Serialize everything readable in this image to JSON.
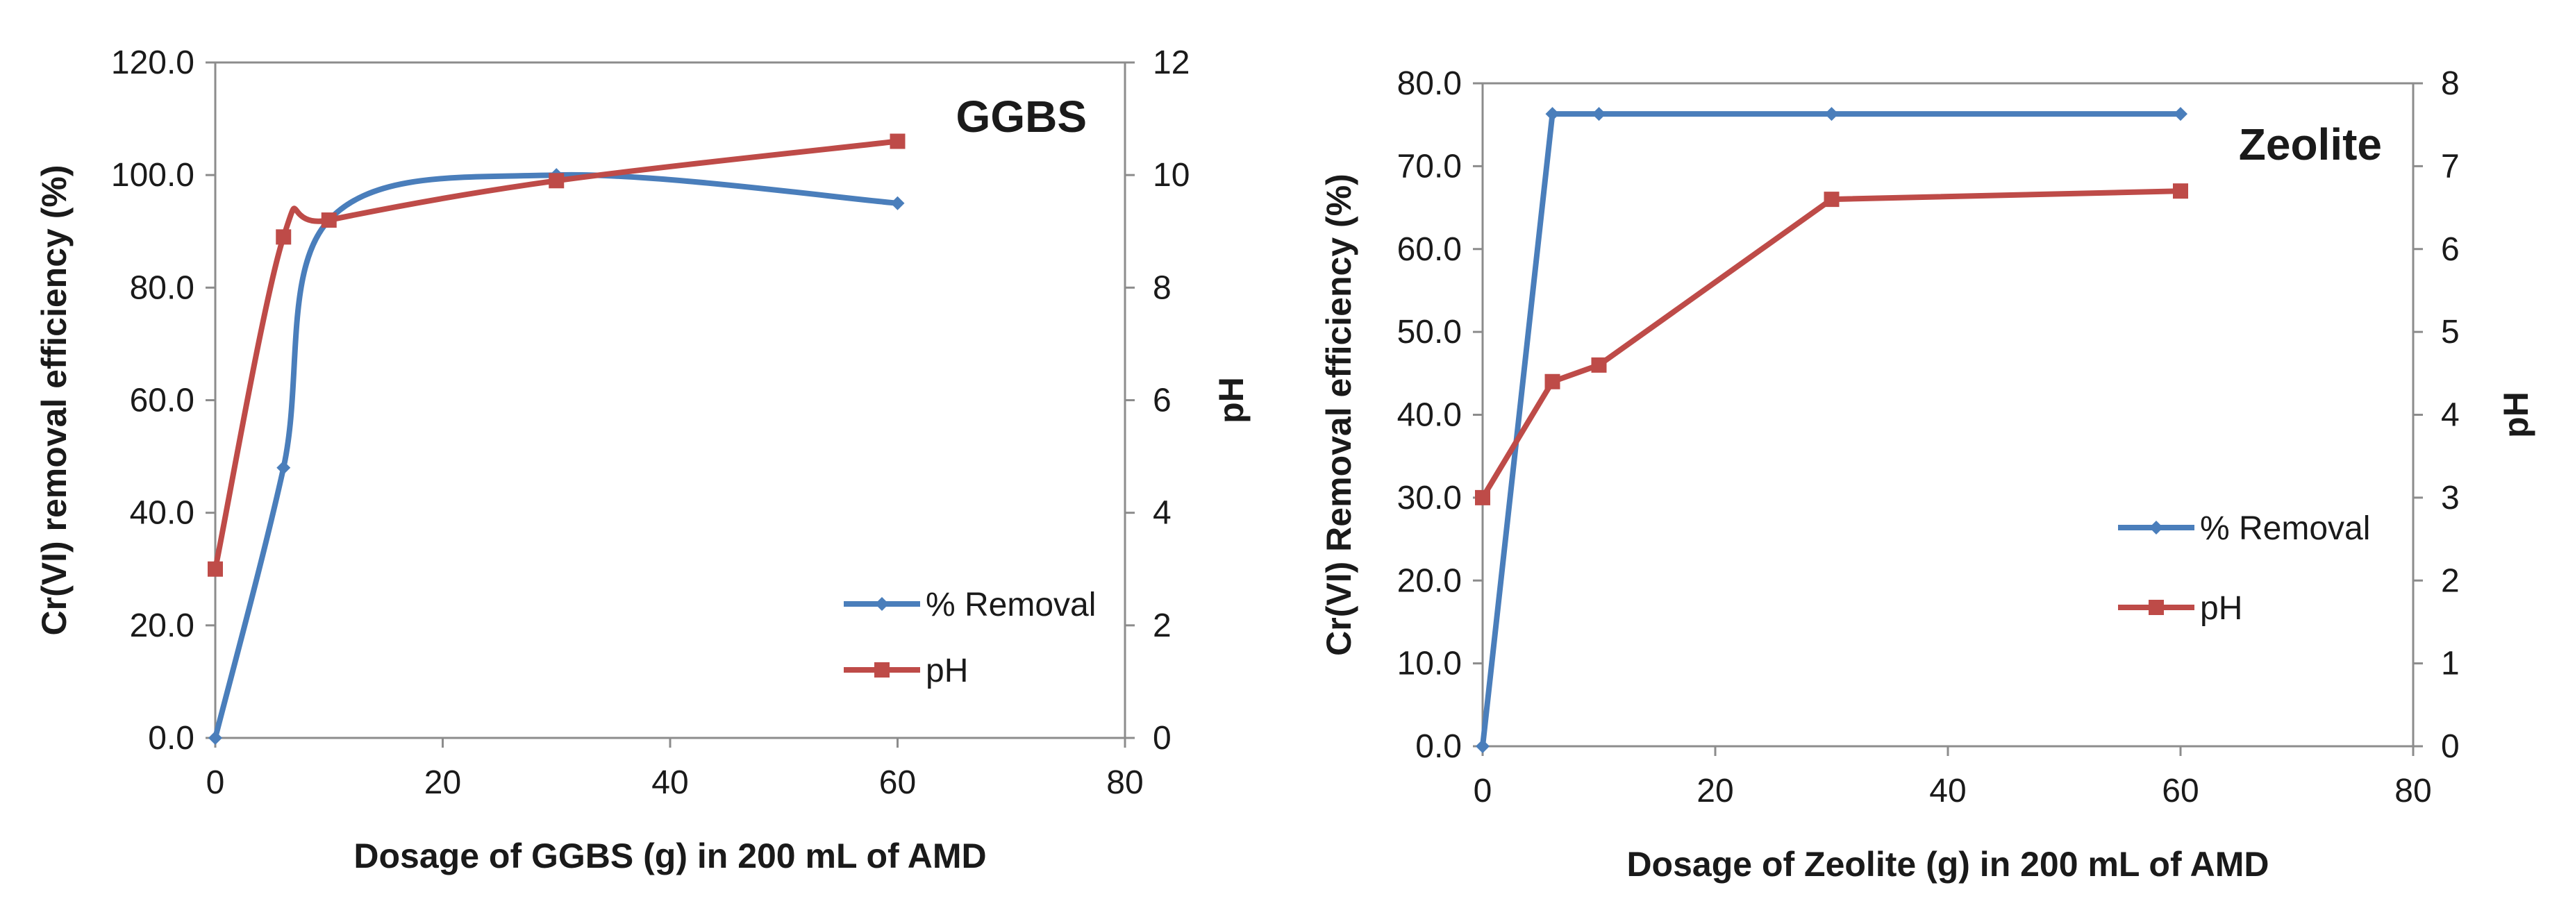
{
  "chart_data": [
    {
      "type": "line",
      "title": "GGBS",
      "xlabel": "Dosage of GGBS (g) in 200 mL of AMD",
      "ylabel": "Cr(VI) removal efficiency (%)",
      "y2label": "pH",
      "xlim": [
        0,
        80
      ],
      "xticks": [
        0,
        20,
        40,
        60,
        80
      ],
      "ylim": [
        0,
        120
      ],
      "yticks": [
        "0.0",
        "20.0",
        "40.0",
        "60.0",
        "80.0",
        "100.0",
        "120.0"
      ],
      "y2lim": [
        0,
        12
      ],
      "y2ticks": [
        "0",
        "2",
        "4",
        "6",
        "8",
        "10",
        "12"
      ],
      "smooth": true,
      "grid": false,
      "legend_position": "bottom-right",
      "series": [
        {
          "name": "% Removal",
          "axis": "left",
          "color": "#4a7ebb",
          "marker": "diamond",
          "x": [
            0,
            6,
            10,
            30,
            60
          ],
          "y": [
            0.0,
            48.0,
            92.0,
            100.0,
            95.0
          ]
        },
        {
          "name": "pH",
          "axis": "right",
          "color": "#be4b48",
          "marker": "square",
          "x": [
            0,
            6,
            10,
            30,
            60
          ],
          "y": [
            3.0,
            8.9,
            9.2,
            9.9,
            10.6
          ]
        }
      ]
    },
    {
      "type": "line",
      "title": "Zeolite",
      "xlabel": "Dosage of Zeolite (g) in 200 mL of AMD",
      "ylabel": "Cr(VI) Removal efficiency (%)",
      "y2label": "pH",
      "xlim": [
        0,
        80
      ],
      "xticks": [
        0,
        20,
        40,
        60,
        80
      ],
      "ylim": [
        0,
        80
      ],
      "yticks": [
        "0.0",
        "10.0",
        "20.0",
        "30.0",
        "40.0",
        "50.0",
        "60.0",
        "70.0",
        "80.0"
      ],
      "y2lim": [
        0,
        8
      ],
      "y2ticks": [
        "0",
        "1",
        "2",
        "3",
        "4",
        "5",
        "6",
        "7",
        "8"
      ],
      "smooth": false,
      "grid": false,
      "legend_position": "right-middle",
      "series": [
        {
          "name": "% Removal",
          "axis": "left",
          "color": "#4a7ebb",
          "marker": "diamond",
          "x": [
            0,
            6,
            10,
            30,
            60
          ],
          "y": [
            0.0,
            76.3,
            76.3,
            76.3,
            76.3
          ]
        },
        {
          "name": "pH",
          "axis": "right",
          "color": "#be4b48",
          "marker": "square",
          "x": [
            0,
            6,
            10,
            30,
            60
          ],
          "y": [
            3.0,
            4.4,
            4.6,
            6.6,
            6.7
          ]
        }
      ]
    }
  ]
}
